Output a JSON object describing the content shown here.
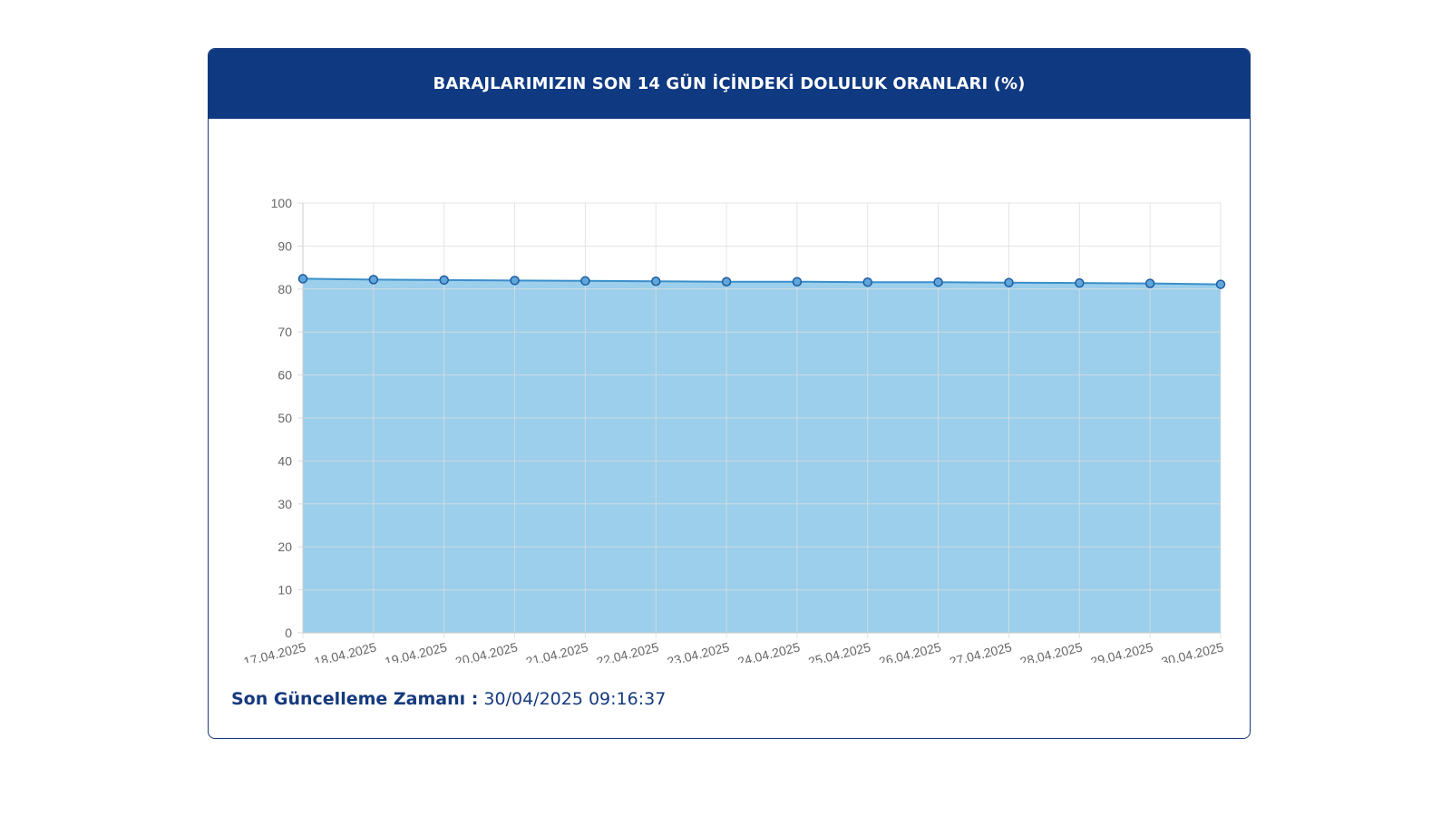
{
  "header": {
    "title": "BARAJLARIMIZIN SON 14 GÜN İÇİNDEKİ DOLULUK ORANLARI (%)"
  },
  "footer": {
    "label": "Son Güncelleme Zamanı :",
    "value": "30/04/2025 09:16:37"
  },
  "colors": {
    "header_bg": "#0f3981",
    "card_border": "#163a7e",
    "area_fill": "#9bcfeb",
    "line": "#3a8fcb",
    "point_fill": "#5ea6dc",
    "point_stroke": "#1f5a9e",
    "grid": "#dddddd",
    "tick_text": "#666666"
  },
  "chart_data": {
    "type": "area",
    "categories": [
      "17.04.2025",
      "18.04.2025",
      "19.04.2025",
      "20.04.2025",
      "21.04.2025",
      "22.04.2025",
      "23.04.2025",
      "24.04.2025",
      "25.04.2025",
      "26.04.2025",
      "27.04.2025",
      "28.04.2025",
      "29.04.2025",
      "30.04.2025"
    ],
    "series": [
      {
        "values": [
          82.4,
          82.2,
          82.1,
          82.0,
          81.9,
          81.8,
          81.7,
          81.7,
          81.6,
          81.6,
          81.5,
          81.4,
          81.3,
          81.1
        ]
      }
    ],
    "ylim": [
      0,
      100
    ],
    "yticks": [
      0,
      10,
      20,
      30,
      40,
      50,
      60,
      70,
      80,
      90,
      100
    ],
    "grid": true,
    "legend": "none"
  }
}
